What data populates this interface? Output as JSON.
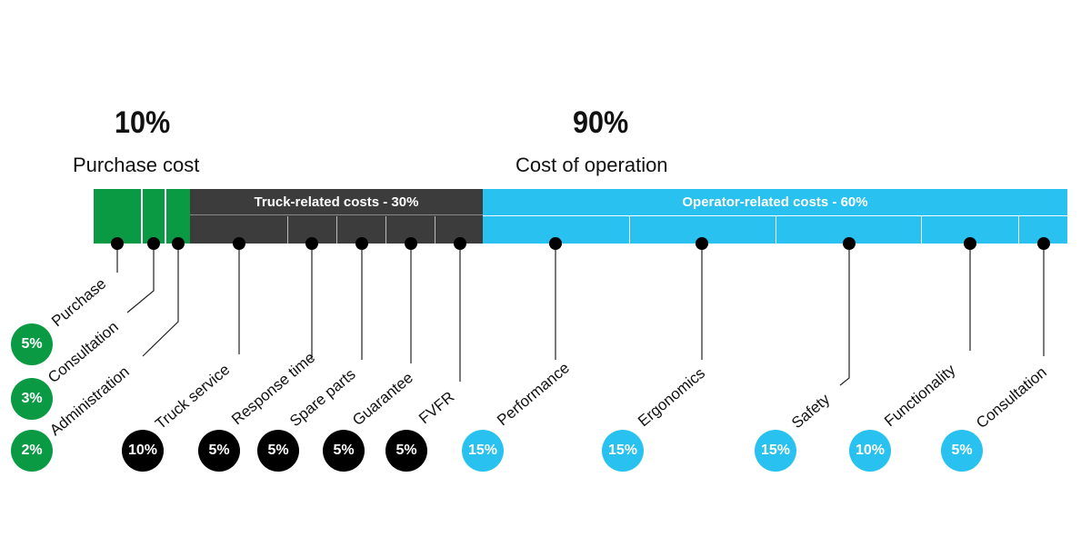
{
  "colors": {
    "green": "#0A9A44",
    "dark": "#3C3C3C",
    "blue": "#29C1EF",
    "black": "#000000"
  },
  "purchase": {
    "percent": "10%",
    "label": "Purchase cost"
  },
  "operation": {
    "percent": "90%",
    "label": "Cost of operation"
  },
  "truck_band": "Truck-related costs - 30%",
  "operator_band": "Operator-related costs - 60%",
  "items": [
    {
      "label": "Purchase",
      "pct": "5%"
    },
    {
      "label": "Consultation",
      "pct": "3%"
    },
    {
      "label": "Administration",
      "pct": "2%"
    },
    {
      "label": "Truck service",
      "pct": "10%"
    },
    {
      "label": "Response time",
      "pct": "5%"
    },
    {
      "label": "Spare parts",
      "pct": "5%"
    },
    {
      "label": "Guarantee",
      "pct": "5%"
    },
    {
      "label": "FVFR",
      "pct": "5%"
    },
    {
      "label": "Performance",
      "pct": "15%"
    },
    {
      "label": "Ergonomics",
      "pct": "15%"
    },
    {
      "label": "Safety",
      "pct": "15%"
    },
    {
      "label": "Functionality",
      "pct": "10%"
    },
    {
      "label": "Consultation",
      "pct": "5%"
    }
  ]
}
